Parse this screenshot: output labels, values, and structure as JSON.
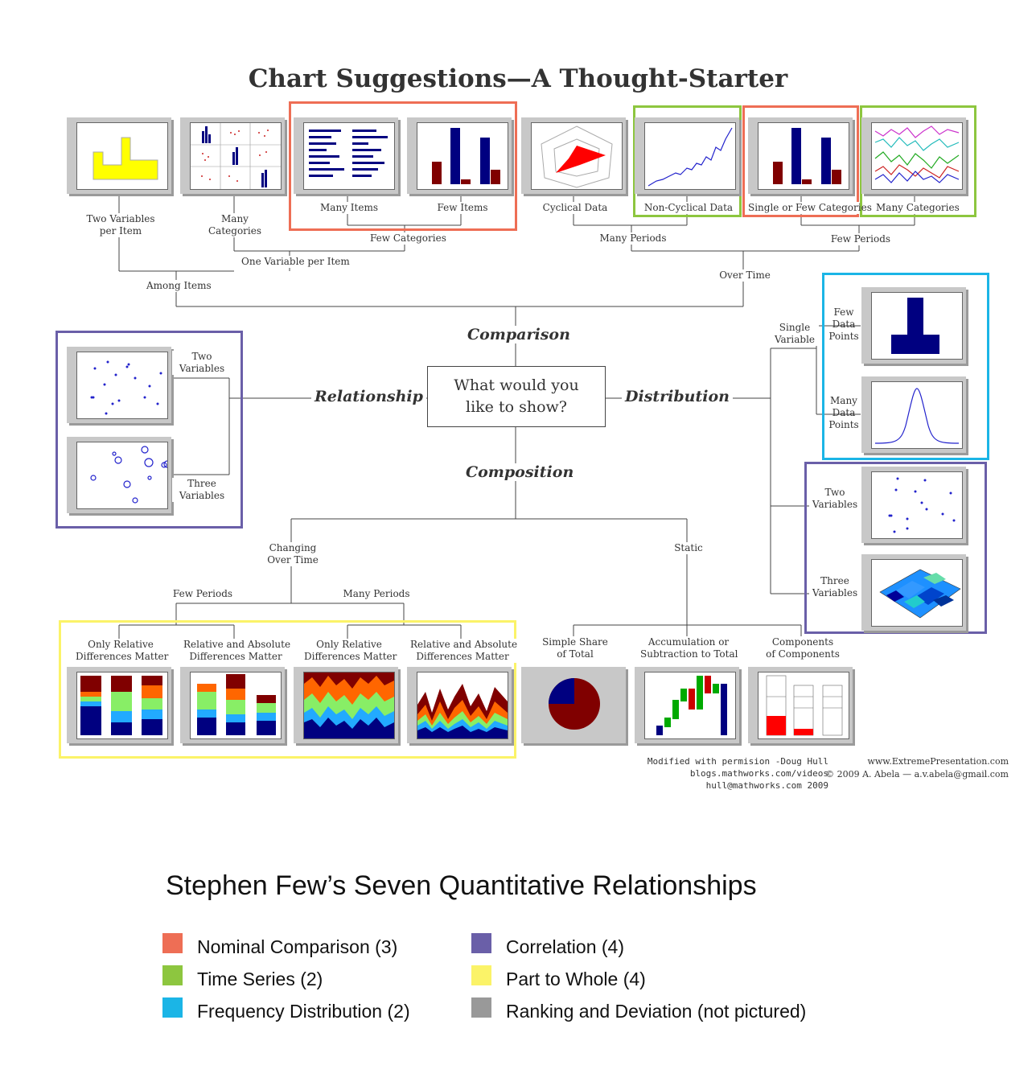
{
  "title": "Chart Suggestions—A Thought-Starter",
  "center_question": {
    "line1": "What would you",
    "line2": "like to show?"
  },
  "branches": {
    "comparison": "Comparison",
    "relationship": "Relationship",
    "distribution": "Distribution",
    "composition": "Composition"
  },
  "comparison": {
    "among_items": "Among Items",
    "over_time": "Over Time",
    "one_variable_per_item": "One Variable per Item",
    "two_variables_per_item": {
      "line1": "Two Variables",
      "line2": "per Item"
    },
    "many_categories_left": {
      "line1": "Many",
      "line2": "Categories"
    },
    "few_categories": "Few Categories",
    "many_items": "Many Items",
    "few_items": "Few Items",
    "many_periods": "Many Periods",
    "few_periods": "Few Periods",
    "cyclical_data": "Cyclical Data",
    "non_cyclical_data": "Non-Cyclical Data",
    "single_or_few_categories": "Single or Few Categories",
    "many_categories_right": "Many Categories"
  },
  "relationship": {
    "two_variables": {
      "line1": "Two",
      "line2": "Variables"
    },
    "three_variables": {
      "line1": "Three",
      "line2": "Variables"
    }
  },
  "distribution": {
    "single_variable": {
      "line1": "Single",
      "line2": "Variable"
    },
    "few_data_points": {
      "line1": "Few",
      "line2": "Data",
      "line3": "Points"
    },
    "many_data_points": {
      "line1": "Many",
      "line2": "Data",
      "line3": "Points"
    },
    "two_variables": {
      "line1": "Two",
      "line2": "Variables"
    },
    "three_variables": {
      "line1": "Three",
      "line2": "Variables"
    }
  },
  "composition": {
    "changing_over_time": {
      "line1": "Changing",
      "line2": "Over Time"
    },
    "static": "Static",
    "few_periods": "Few Periods",
    "many_periods": "Many Periods",
    "only_relative_1": {
      "line1": "Only Relative",
      "line2": "Differences Matter"
    },
    "relative_absolute_1": {
      "line1": "Relative and Absolute",
      "line2": "Differences Matter"
    },
    "only_relative_2": {
      "line1": "Only Relative",
      "line2": "Differences Matter"
    },
    "relative_absolute_2": {
      "line1": "Relative and Absolute",
      "line2": "Differences Matter"
    },
    "simple_share": {
      "line1": "Simple Share",
      "line2": "of Total"
    },
    "accumulation": {
      "line1": "Accumulation or",
      "line2": "Subtraction to Total"
    },
    "components": {
      "line1": "Components",
      "line2": "of Components"
    }
  },
  "credits": {
    "mod1": "Modified with permision -Doug Hull",
    "mod2": "blogs.mathworks.com/videos",
    "mod3": "hull@mathworks.com 2009",
    "site": "www.ExtremePresentation.com",
    "copyright": "© 2009  A. Abela — a.v.abela@gmail.com"
  },
  "legend": {
    "title": "Stephen Few’s Seven Quantitative Relationships",
    "items": [
      {
        "label": "Nominal Comparison (3)",
        "color": "#ee6e55"
      },
      {
        "label": "Time Series (2)",
        "color": "#8dc63f"
      },
      {
        "label": "Frequency Distribution (2)",
        "color": "#1bb5e6"
      },
      {
        "label": "Correlation (4)",
        "color": "#6a5fa8"
      },
      {
        "label": "Part to Whole (4)",
        "color": "#fbf368"
      },
      {
        "label": "Ranking and Deviation (not pictured)",
        "color": "#999999"
      }
    ]
  },
  "colors": {
    "nominal": "#ee6e55",
    "time_series": "#8dc63f",
    "frequency": "#1bb5e6",
    "correlation": "#6a5fa8",
    "part_to_whole": "#fbf368"
  }
}
